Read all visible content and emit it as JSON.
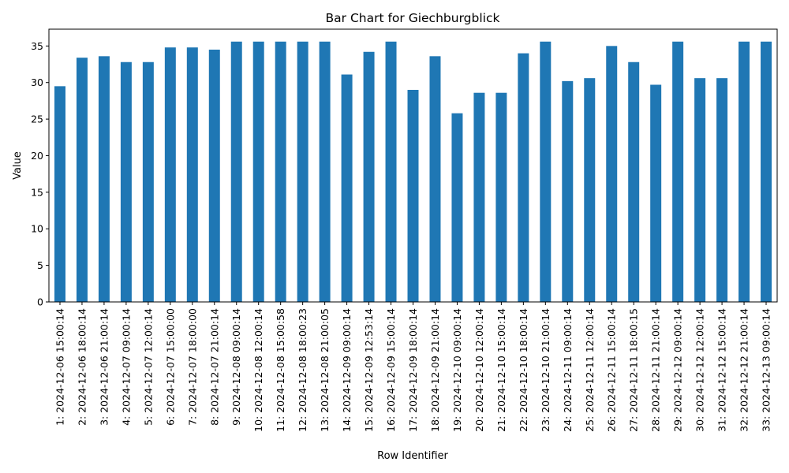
{
  "chart_data": {
    "type": "bar",
    "title": "Bar Chart for Giechburgblick",
    "xlabel": "Row Identifier",
    "ylabel": "Value",
    "ylim": [
      0,
      37.3
    ],
    "yticks": [
      0,
      5,
      10,
      15,
      20,
      25,
      30,
      35
    ],
    "grid": false,
    "legend": "none",
    "bar_color": "#1f77b4",
    "categories": [
      "1: 2024-12-06 15:00:14",
      "2: 2024-12-06 18:00:14",
      "3: 2024-12-06 21:00:14",
      "4: 2024-12-07 09:00:14",
      "5: 2024-12-07 12:00:14",
      "6: 2024-12-07 15:00:00",
      "7: 2024-12-07 18:00:00",
      "8: 2024-12-07 21:00:14",
      "9: 2024-12-08 09:00:14",
      "10: 2024-12-08 12:00:14",
      "11: 2024-12-08 15:00:58",
      "12: 2024-12-08 18:00:23",
      "13: 2024-12-08 21:00:05",
      "14: 2024-12-09 09:00:14",
      "15: 2024-12-09 12:53:14",
      "16: 2024-12-09 15:00:14",
      "17: 2024-12-09 18:00:14",
      "18: 2024-12-09 21:00:14",
      "19: 2024-12-10 09:00:14",
      "20: 2024-12-10 12:00:14",
      "21: 2024-12-10 15:00:14",
      "22: 2024-12-10 18:00:14",
      "23: 2024-12-10 21:00:14",
      "24: 2024-12-11 09:00:14",
      "25: 2024-12-11 12:00:14",
      "26: 2024-12-11 15:00:14",
      "27: 2024-12-11 18:00:15",
      "28: 2024-12-11 21:00:14",
      "29: 2024-12-12 09:00:14",
      "30: 2024-12-12 12:00:14",
      "31: 2024-12-12 15:00:14",
      "32: 2024-12-12 21:00:14",
      "33: 2024-12-13 09:00:14"
    ],
    "values": [
      29.5,
      33.4,
      33.6,
      32.8,
      32.8,
      34.8,
      34.8,
      34.5,
      35.6,
      35.6,
      35.6,
      35.6,
      35.6,
      31.1,
      34.2,
      35.6,
      29.0,
      33.6,
      25.8,
      28.6,
      28.6,
      34.0,
      35.6,
      30.2,
      30.6,
      35.0,
      32.8,
      29.7,
      35.6,
      30.6,
      30.6,
      35.6,
      35.6
    ]
  }
}
